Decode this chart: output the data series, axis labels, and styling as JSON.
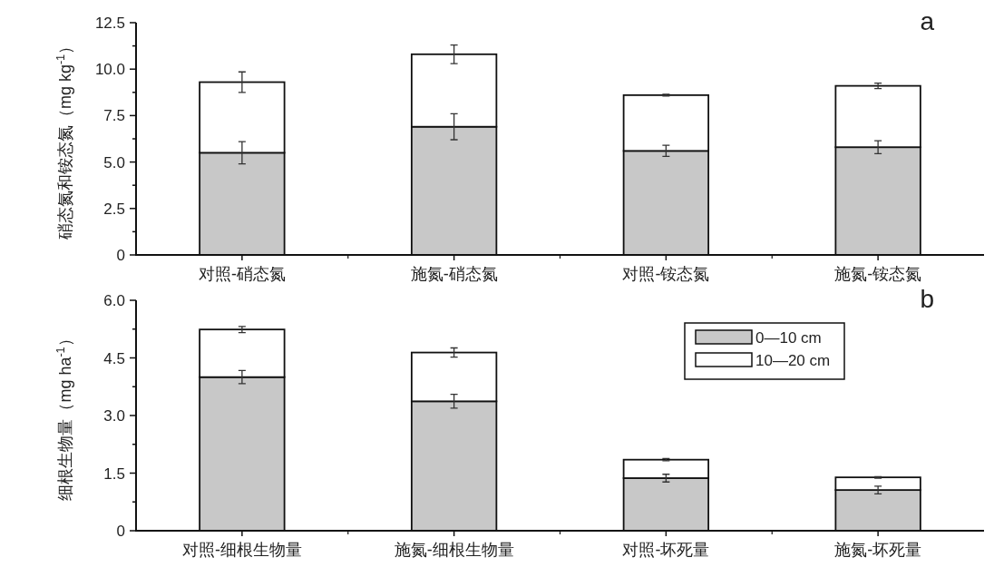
{
  "chart_data": [
    {
      "type": "bar",
      "stacked": true,
      "ylabel": "硝态氮和铵态氮（mg kg$^{-1}$）",
      "annotations": [
        "a"
      ],
      "legend": false,
      "categories": [
        "对照-硝态氮",
        "施氮-硝态氮",
        "对照-铵态氮",
        "施氮-铵态氮"
      ],
      "ylim": [
        0,
        12.5
      ],
      "yticks": [
        {
          "value": 0,
          "label": "0"
        },
        {
          "value": 1.25,
          "label": null
        },
        2.5,
        {
          "value": 3.75,
          "label": null
        },
        {
          "value": 5,
          "label": "5.0"
        },
        {
          "value": 6.25,
          "label": null
        },
        7.5,
        {
          "value": 8.75,
          "label": null
        },
        {
          "value": 10,
          "label": "10.0"
        },
        {
          "value": 11.25,
          "label": null
        },
        12.5
      ],
      "series": [
        {
          "color": "#c8c8c8",
          "values": [
            5.5,
            6.9,
            5.6,
            5.8
          ],
          "errors": [
            0.6,
            0.7,
            0.3,
            0.35
          ]
        },
        {
          "color": "#ffffff",
          "values": [
            3.8,
            3.9,
            3.0,
            3.3
          ],
          "errors": [
            0.55,
            0.5,
            0.05,
            0.15
          ]
        }
      ]
    },
    {
      "type": "bar",
      "stacked": true,
      "ylabel": "细根生物量（mg ha$^{-1}$）",
      "annotations": [
        "b"
      ],
      "legend": "top right",
      "categories": [
        "对照-细根生物量",
        "施氮-细根生物量",
        "对照-坏死量",
        "施氮-坏死量"
      ],
      "ylim": [
        0,
        6
      ],
      "yticks": [
        {
          "value": 0,
          "label": "0"
        },
        {
          "value": 0.75,
          "label": null
        },
        1.5,
        {
          "value": 2.25,
          "label": null
        },
        {
          "value": 3,
          "label": "3.0"
        },
        {
          "value": 3.75,
          "label": null
        },
        4.5,
        {
          "value": 5.25,
          "label": null
        },
        {
          "value": 6,
          "label": "6.0"
        }
      ],
      "series": [
        {
          "name": "0—10 cm",
          "color": "#c8c8c8",
          "values": [
            4.0,
            3.37,
            1.37,
            1.06
          ],
          "errors": [
            0.17,
            0.18,
            0.1,
            0.1
          ]
        },
        {
          "name": "10—20 cm",
          "color": "#ffffff",
          "values": [
            1.24,
            1.27,
            0.48,
            0.33
          ],
          "errors": [
            0.08,
            0.12,
            0.03,
            0.02
          ]
        }
      ]
    }
  ]
}
